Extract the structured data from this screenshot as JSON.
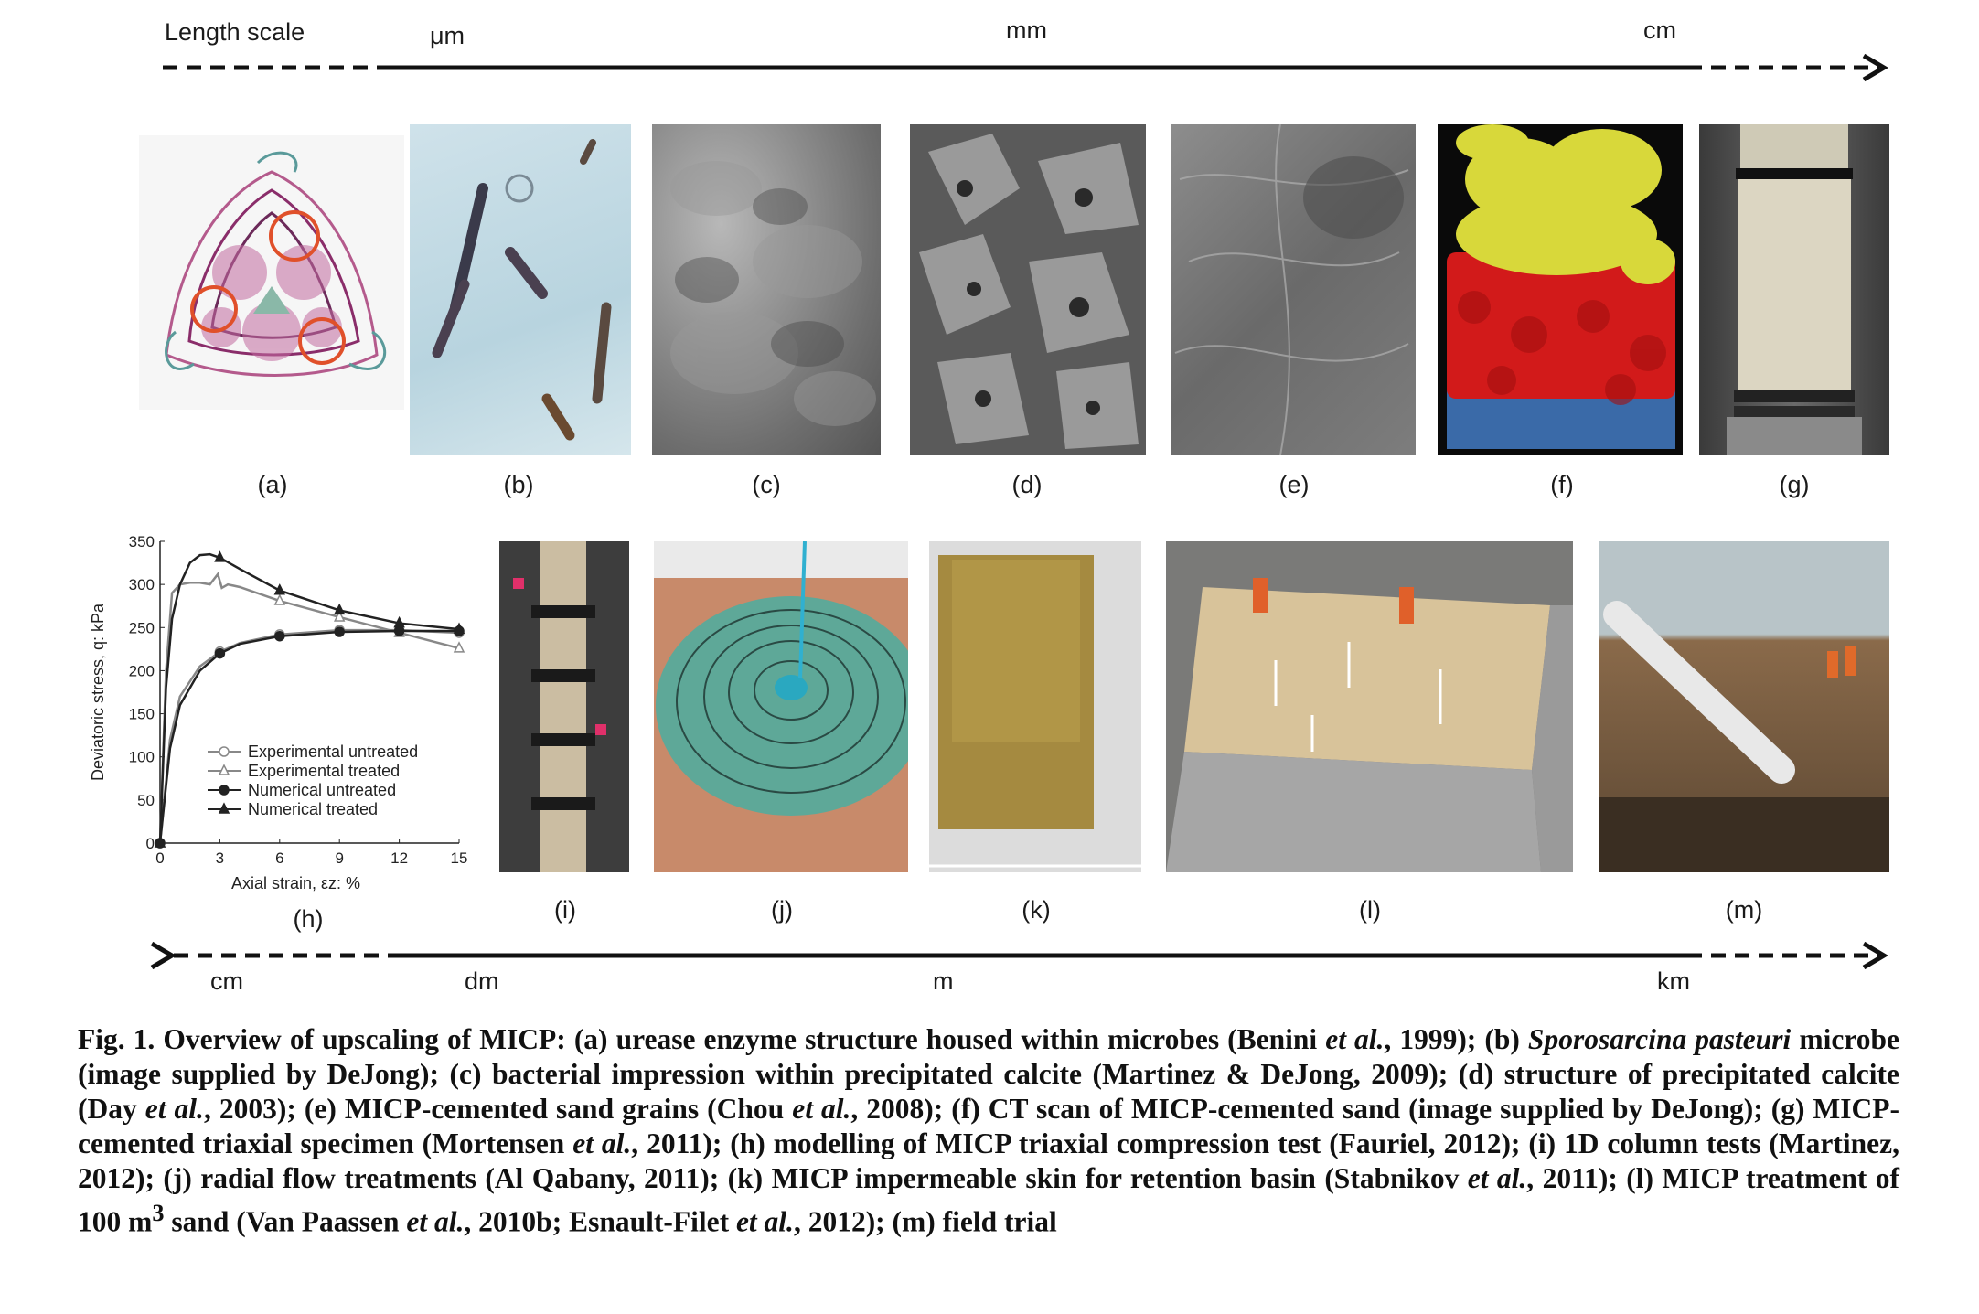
{
  "top_scale": {
    "title": "Length scale",
    "labels": [
      "μm",
      "mm",
      "cm"
    ]
  },
  "bottom_scale": {
    "labels": [
      "cm",
      "dm",
      "m",
      "km"
    ]
  },
  "panels_top": [
    "(a)",
    "(b)",
    "(c)",
    "(d)",
    "(e)",
    "(f)",
    "(g)"
  ],
  "panels_bottom": [
    "(h)",
    "(i)",
    "(j)",
    "(k)",
    "(l)",
    "(m)"
  ],
  "chart_data": {
    "type": "line",
    "xlabel": "Axial strain, εz: %",
    "ylabel": "Deviatoric stress, q: kPa",
    "xlim": [
      0,
      15
    ],
    "ylim": [
      0,
      350
    ],
    "xticks": [
      0,
      3,
      6,
      9,
      12,
      15
    ],
    "yticks": [
      0,
      50,
      100,
      150,
      200,
      250,
      300,
      350
    ],
    "legend_position": "bottom-left",
    "series": [
      {
        "name": "Experimental untreated",
        "marker": "open-circle",
        "x": [
          0,
          0.5,
          1,
          2,
          3,
          4,
          6,
          9,
          12,
          15
        ],
        "y": [
          0,
          120,
          170,
          205,
          222,
          232,
          242,
          247,
          247,
          244
        ]
      },
      {
        "name": "Experimental treated",
        "marker": "open-triangle",
        "x": [
          0,
          0.3,
          0.6,
          1,
          1.5,
          2,
          2.5,
          2.9,
          3.1,
          3.4,
          4,
          6,
          9,
          12,
          15
        ],
        "y": [
          0,
          200,
          290,
          300,
          302,
          302,
          300,
          312,
          296,
          300,
          297,
          281,
          262,
          244,
          226
        ]
      },
      {
        "name": "Numerical untreated",
        "marker": "filled-circle",
        "x": [
          0,
          0.5,
          1,
          2,
          3,
          4,
          6,
          9,
          12,
          15
        ],
        "y": [
          0,
          110,
          160,
          200,
          220,
          231,
          240,
          245,
          246,
          246
        ]
      },
      {
        "name": "Numerical treated",
        "marker": "filled-triangle",
        "x": [
          0,
          0.3,
          0.6,
          1,
          1.5,
          2,
          2.5,
          3,
          4,
          6,
          9,
          12,
          15
        ],
        "y": [
          0,
          180,
          260,
          300,
          325,
          334,
          335,
          331,
          318,
          293,
          270,
          255,
          248
        ]
      }
    ]
  },
  "caption": {
    "p1": "Fig. 1. Overview of upscaling of MICP: (a) urease enzyme structure housed within microbes (Benini ",
    "i1": "et al.",
    "p2": ", 1999); (b) ",
    "i2": "Sporosarcina pasteuri",
    "p3": " microbe (image supplied by DeJong); (c) bacterial impression within precipitated calcite (Martinez & DeJong, 2009); (d) structure of precipitated calcite (Day ",
    "i3": "et al.",
    "p4": ", 2003); (e) MICP-cemented sand grains (Chou ",
    "i4": "et al.",
    "p5": ", 2008); (f) CT scan of MICP-cemented sand (image supplied by DeJong); (g) MICP-cemented triaxial specimen (Mortensen ",
    "i5": "et al.",
    "p6": ", 2011); (h) modelling of MICP triaxial compression test (Fauriel, 2012); (i) 1D column tests (Martinez, 2012); (j) radial flow treatments (Al Qabany, 2011); (k) MICP impermeable skin for retention basin (Stabnikov ",
    "i6": "et al.",
    "p7": ", 2011); (l) MICP treatment of 100 m",
    "sup": "3",
    "p8": " sand (Van Paassen ",
    "i7": "et al.",
    "p9": ", 2010b; Esnault-Filet ",
    "i8": "et al.",
    "p10": ", 2012); (m) field trial"
  }
}
